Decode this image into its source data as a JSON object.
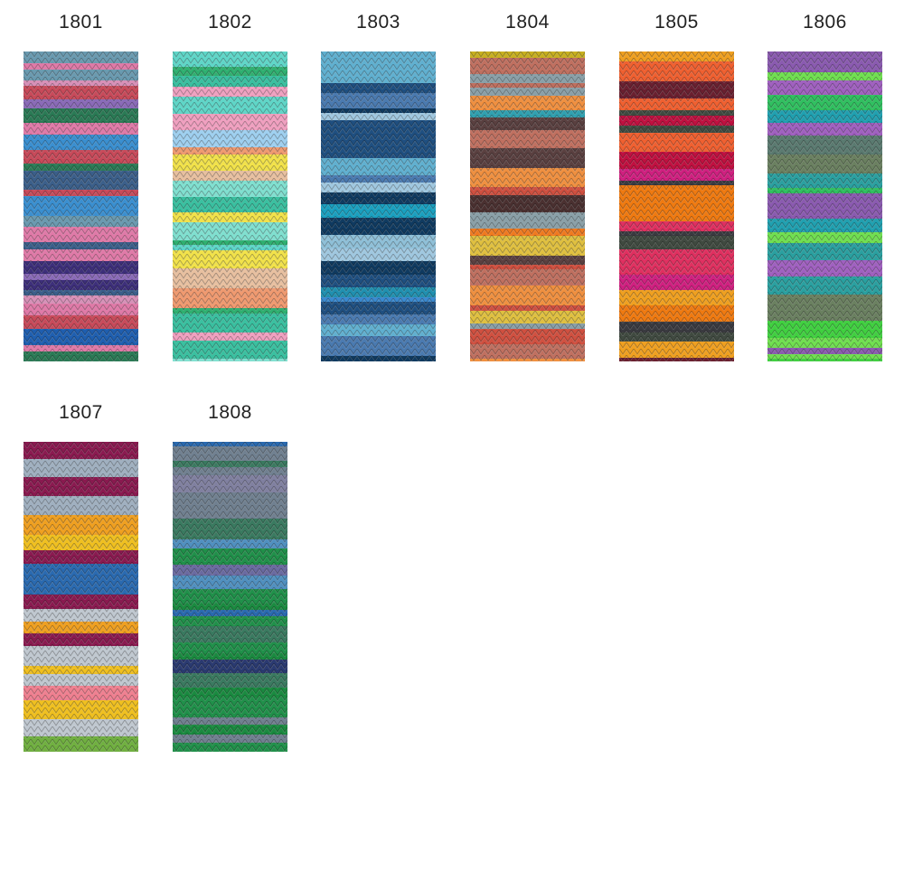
{
  "swatches": [
    {
      "label": "1801"
    },
    {
      "label": "1802"
    },
    {
      "label": "1803"
    },
    {
      "label": "1804"
    },
    {
      "label": "1805"
    },
    {
      "label": "1806"
    },
    {
      "label": "1807"
    },
    {
      "label": "1808"
    }
  ]
}
